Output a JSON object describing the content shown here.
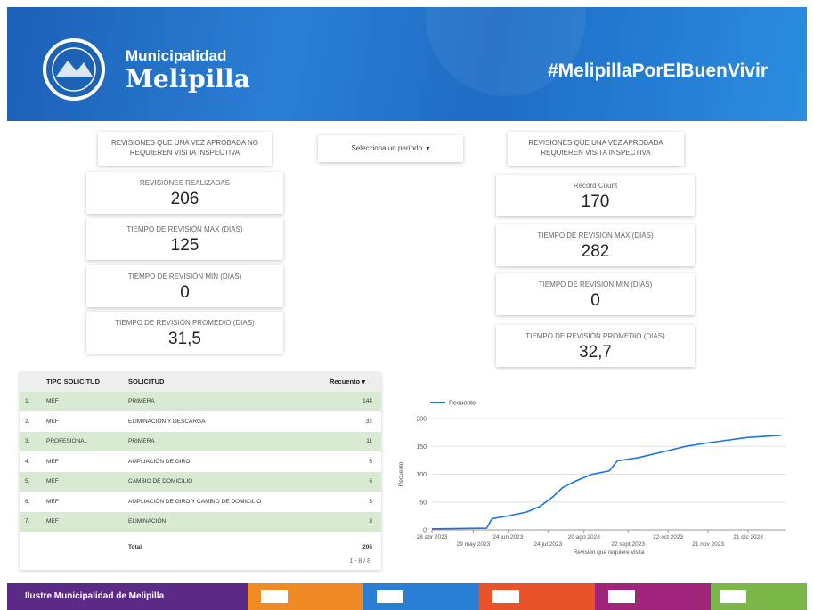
{
  "header": {
    "brand_line1": "Municipalidad",
    "brand_line2": "Melipilla",
    "hashtag": "#MelipillaPorElBuenVivir"
  },
  "left_panel": {
    "caption": "REVISIONES QUE UNA VEZ APROBADA NO REQUIEREN VISITA INSPECTIVA",
    "cards": [
      {
        "label": "REVISIONES REALIZADAS",
        "value": "206"
      },
      {
        "label": "TIEMPO DE REVISIÓN MAX (DIAS)",
        "value": "125"
      },
      {
        "label": "TIEMPO DE REVISIÓN MIN (DIAS)",
        "value": "0"
      },
      {
        "label": "TIEMPO DE REVISIÓN PROMEDIO (DIAS)",
        "value": "31,5"
      }
    ]
  },
  "period_selector": {
    "label": "Selecciona un período"
  },
  "right_panel": {
    "caption": "REVISIONES QUE UNA VEZ APROBADA REQUIEREN VISITA INSPECTIVA",
    "cards": [
      {
        "label": "Record Count",
        "value": "170"
      },
      {
        "label": "TIEMPO DE REVISIÓN MAX (DIAS)",
        "value": "282"
      },
      {
        "label": "TIEMPO DE REVISIÓN MIN (DIAS)",
        "value": "0"
      },
      {
        "label": "TIEMPO DE REVISIÓN PROMEDIO (DIAS)",
        "value": "32,7"
      }
    ]
  },
  "table": {
    "headers": [
      "TIPO SOLICITUD",
      "SOLICITUD",
      "Recuento"
    ],
    "rows": [
      [
        "1.",
        "MEF",
        "PRIMERA",
        "144"
      ],
      [
        "2.",
        "MEF",
        "ELIMINACIÓN Y DESCARGA",
        "32"
      ],
      [
        "3.",
        "PROFESIONAL",
        "PRIMERA",
        "11"
      ],
      [
        "4.",
        "MEF",
        "AMPLIACIÓN DE GIRO",
        "6"
      ],
      [
        "5.",
        "MEF",
        "CAMBIO DE DOMICILIO",
        "6"
      ],
      [
        "6.",
        "MEF",
        "AMPLIACIÓN DE GIRO Y CAMBIO DE DOMICILIO",
        "3"
      ],
      [
        "7.",
        "MEF",
        "ELIMINACIÓN",
        "3"
      ]
    ],
    "total_label": "Total",
    "total": "206",
    "pagination": "1 - 8 / 8"
  },
  "chart_data": {
    "type": "line",
    "x_label": "Revisión que requiere visita",
    "y_label": "Recuento",
    "x": [
      "2023-04-28",
      "2023-06-08",
      "2023-06-12",
      "2023-06-24",
      "2023-07-08",
      "2023-07-18",
      "2023-07-28",
      "2023-08-04",
      "2023-08-14",
      "2023-08-26",
      "2023-09-08",
      "2023-09-14",
      "2023-09-30",
      "2023-10-18",
      "2023-11-04",
      "2023-11-20",
      "2023-12-02",
      "2023-12-20",
      "2024-01-15"
    ],
    "series": [
      {
        "name": "Recuento",
        "color": "#1a73e8",
        "values": [
          2,
          3,
          20,
          25,
          32,
          42,
          60,
          76,
          88,
          100,
          106,
          124,
          130,
          140,
          150,
          156,
          160,
          166,
          170
        ]
      }
    ],
    "xlim": [
      "2023-04-28",
      "2024-01-18"
    ],
    "xticks": [
      {
        "value": "2023-04-28",
        "label": "28 abr 2023"
      },
      {
        "value": "2023-05-29",
        "label": "29 may 2023"
      },
      {
        "value": "2023-06-24",
        "label": "24 jun 2023"
      },
      {
        "value": "2023-07-24",
        "label": "24 jul 2023"
      },
      {
        "value": "2023-08-20",
        "label": "20 ago 2023"
      },
      {
        "value": "2023-09-22",
        "label": "22 sept 2023"
      },
      {
        "value": "2023-10-22",
        "label": "22 oct 2023"
      },
      {
        "value": "2023-11-21",
        "label": "21 nov 2023"
      },
      {
        "value": "2023-12-21",
        "label": "21 dic 2023"
      }
    ],
    "ylim": [
      0,
      200
    ],
    "yticks": [
      0,
      50,
      100,
      150,
      200
    ],
    "grid": true
  },
  "footer": {
    "text": "Ilustre Municipalidad de Melipilla"
  }
}
